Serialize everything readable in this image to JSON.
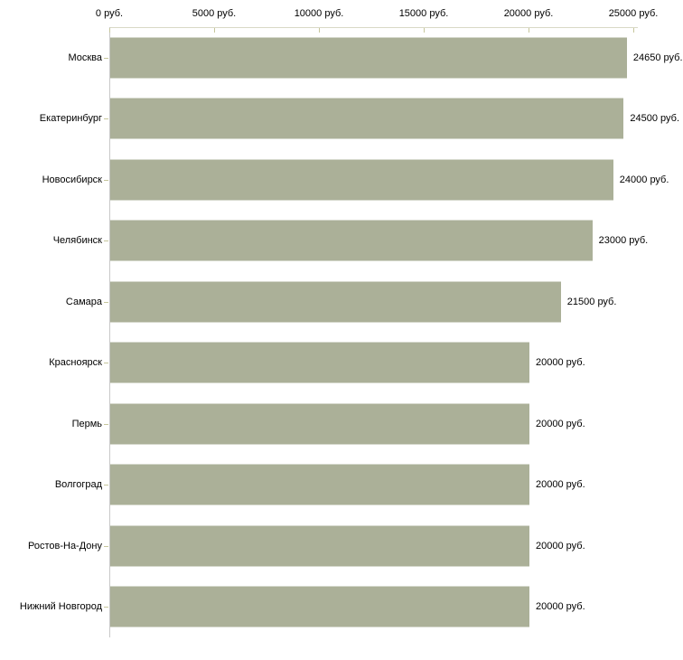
{
  "chart_data": {
    "type": "bar",
    "orientation": "horizontal",
    "title": "",
    "xlabel": "",
    "ylabel": "",
    "unit": "руб.",
    "categories": [
      "Москва",
      "Екатеринбург",
      "Новосибирск",
      "Челябинск",
      "Самара",
      "Красноярск",
      "Пермь",
      "Волгоград",
      "Ростов-На-Дону",
      "Нижний Новгород"
    ],
    "values": [
      24650,
      24500,
      24000,
      23000,
      21500,
      20000,
      20000,
      20000,
      20000,
      20000
    ],
    "value_labels": [
      "24650 руб.",
      "24500 руб.",
      "24000 руб.",
      "23000 руб.",
      "21500 руб.",
      "20000 руб.",
      "20000 руб.",
      "20000 руб.",
      "20000 руб.",
      "20000 руб."
    ],
    "x_ticks": [
      {
        "value": 0,
        "label": "0 руб."
      },
      {
        "value": 5000,
        "label": "5000 руб."
      },
      {
        "value": 10000,
        "label": "10000 руб."
      },
      {
        "value": 15000,
        "label": "15000 руб."
      },
      {
        "value": 20000,
        "label": "20000 руб."
      },
      {
        "value": 25000,
        "label": "25000 руб."
      }
    ],
    "xlim": [
      0,
      25000
    ],
    "grid": false,
    "legend": false,
    "colors": {
      "bar_fill": "#abb098",
      "x_axis_line": "#d9d9c6",
      "x_tick": "#c6c69c",
      "y_axis_line": "#c8c8c8",
      "y_tick": "#c6c69c",
      "text": "#000000",
      "background": "#ffffff"
    }
  }
}
